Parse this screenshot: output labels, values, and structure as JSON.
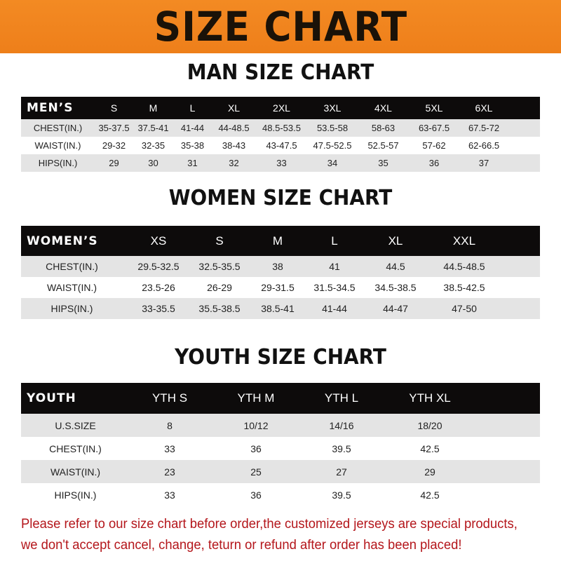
{
  "banner_title": "SIZE CHART",
  "men": {
    "title": "MAN SIZE CHART",
    "header": [
      "MEN’S",
      "S",
      "M",
      "L",
      "XL",
      "2XL",
      "3XL",
      "4XL",
      "5XL",
      "6XL",
      ""
    ],
    "rows": [
      [
        "CHEST(IN.)",
        "35-37.5",
        "37.5-41",
        "41-44",
        "44-48.5",
        "48.5-53.5",
        "53.5-58",
        "58-63",
        "63-67.5",
        "67.5-72",
        ""
      ],
      [
        "WAIST(IN.)",
        "29-32",
        "32-35",
        "35-38",
        "38-43",
        "43-47.5",
        "47.5-52.5",
        "52.5-57",
        "57-62",
        "62-66.5",
        ""
      ],
      [
        "HIPS(IN.)",
        "29",
        "30",
        "31",
        "32",
        "33",
        "34",
        "35",
        "36",
        "37",
        ""
      ]
    ]
  },
  "women": {
    "title": "WOMEN SIZE CHART",
    "header": [
      "WOMEN’S",
      "XS",
      "S",
      "M",
      "L",
      "XL",
      "XXL",
      ""
    ],
    "rows": [
      [
        "CHEST(IN.)",
        "29.5-32.5",
        "32.5-35.5",
        "38",
        "41",
        "44.5",
        "44.5-48.5",
        ""
      ],
      [
        "WAIST(IN.)",
        "23.5-26",
        "26-29",
        "29-31.5",
        "31.5-34.5",
        "34.5-38.5",
        "38.5-42.5",
        ""
      ],
      [
        "HIPS(IN.)",
        "33-35.5",
        "35.5-38.5",
        "38.5-41",
        "41-44",
        "44-47",
        "47-50",
        ""
      ]
    ]
  },
  "youth": {
    "title": "YOUTH SIZE CHART",
    "header": [
      "YOUTH",
      "YTH S",
      "YTH M",
      "YTH L",
      "YTH XL",
      ""
    ],
    "rows": [
      [
        "U.S.SIZE",
        "8",
        "10/12",
        "14/16",
        "18/20",
        ""
      ],
      [
        "CHEST(IN.)",
        "33",
        "36",
        "39.5",
        "42.5",
        ""
      ],
      [
        "WAIST(IN.)",
        "23",
        "25",
        "27",
        "29",
        ""
      ],
      [
        "HIPS(IN.)",
        "33",
        "36",
        "39.5",
        "42.5",
        ""
      ]
    ]
  },
  "note": {
    "line1": "Please refer to our size chart before order,the customized jerseys are special products,",
    "line2": "we don't accept cancel, change, teturn or refund after order has been placed!"
  },
  "colors": {
    "banner": "#f08520",
    "header_row": "#0d0b0b",
    "stripe": "#e4e4e4",
    "note": "#b4161b"
  }
}
